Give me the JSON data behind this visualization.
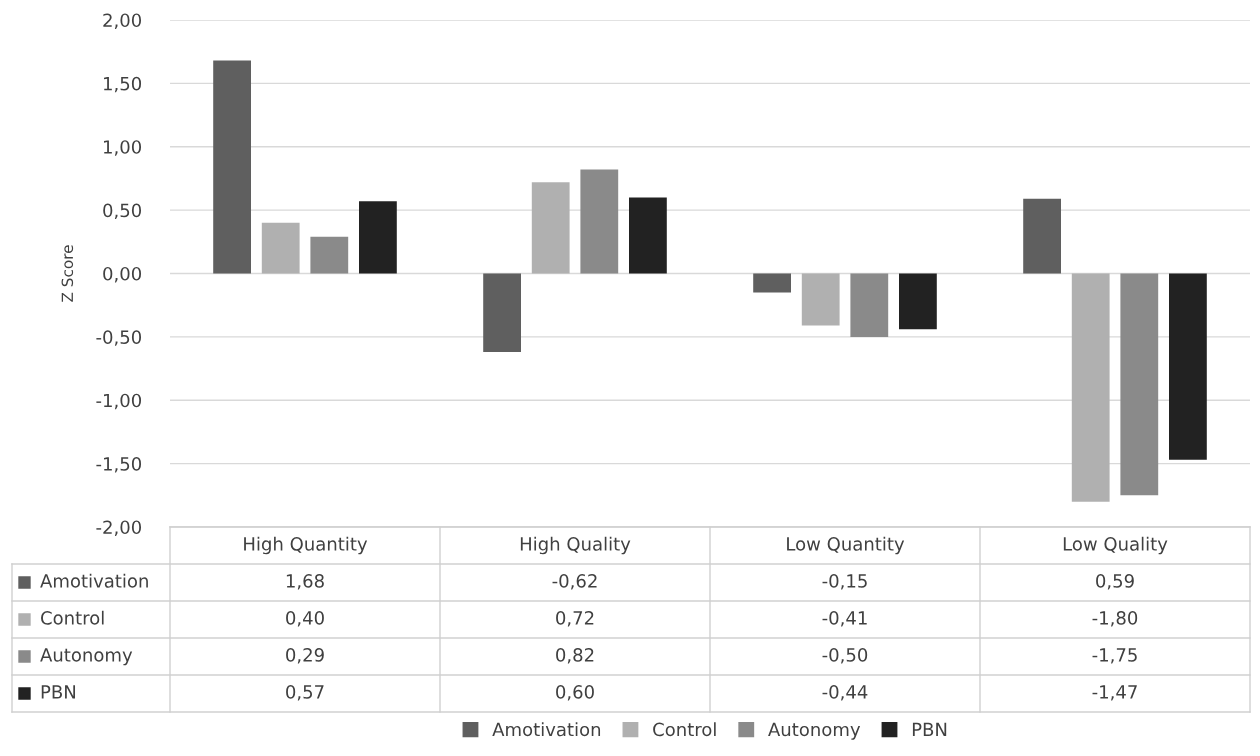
{
  "chart_data": {
    "type": "bar",
    "ylabel": "Z Score",
    "categories": [
      "High Quantity",
      "High Quality",
      "Low Quantity",
      "Low Quality"
    ],
    "series": [
      {
        "name": "Amotivation",
        "color": "#5f5f5f",
        "values": [
          1.68,
          -0.62,
          -0.15,
          0.59
        ],
        "value_labels": [
          "1,68",
          "-0,62",
          "-0,15",
          "0,59"
        ]
      },
      {
        "name": "Control",
        "color": "#b0b0b0",
        "values": [
          0.4,
          0.72,
          -0.41,
          -1.8
        ],
        "value_labels": [
          "0,40",
          "0,72",
          "-0,41",
          "-1,80"
        ]
      },
      {
        "name": "Autonomy",
        "color": "#8a8a8a",
        "values": [
          0.29,
          0.82,
          -0.5,
          -1.75
        ],
        "value_labels": [
          "0,29",
          "0,82",
          "-0,50",
          "-1,75"
        ]
      },
      {
        "name": "PBN",
        "color": "#222222",
        "values": [
          0.57,
          0.6,
          -0.44,
          -1.47
        ],
        "value_labels": [
          "0,57",
          "0,60",
          "-0,44",
          "-1,47"
        ]
      }
    ],
    "ylim": [
      -2,
      2
    ],
    "yticks": [
      {
        "value": -2,
        "label": "-2,00"
      },
      {
        "value": -1.5,
        "label": "-1,50"
      },
      {
        "value": -1,
        "label": "-1,00"
      },
      {
        "value": -0.5,
        "label": "-0,50"
      },
      {
        "value": 0,
        "label": "0,00"
      },
      {
        "value": 0.5,
        "label": "0,50"
      },
      {
        "value": 1,
        "label": "1,00"
      },
      {
        "value": 1.5,
        "label": "1,50"
      },
      {
        "value": 2,
        "label": "2,00"
      }
    ],
    "grid": "y",
    "legend": "bottom"
  }
}
